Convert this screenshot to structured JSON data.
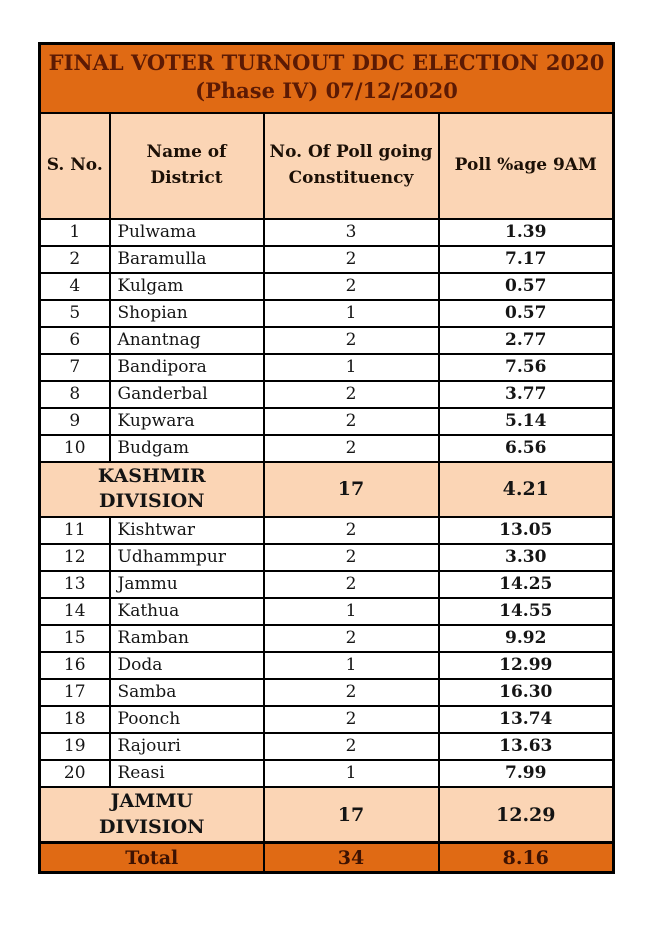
{
  "colors": {
    "orange": "#E06A14",
    "peach": "#FBD5B5",
    "title_text": "#5C1A04",
    "header_text": "#1C1006",
    "data_text": "#151515",
    "division_text": "#141414",
    "total_text": "#3D1202",
    "border": "#000000"
  },
  "table": {
    "title": "FINAL VOTER TURNOUT DDC ELECTION 2020\n(Phase IV) 07/12/2020",
    "columns": [
      {
        "label": "S. No."
      },
      {
        "label": "Name of\nDistrict"
      },
      {
        "label": "No. Of Poll going\nConstituency"
      },
      {
        "label": "Poll %age 9AM"
      }
    ],
    "rows": [
      {
        "type": "data",
        "sno": "1",
        "district": "Pulwama",
        "constituencies": "3",
        "poll": "1.39"
      },
      {
        "type": "data",
        "sno": "2",
        "district": "Baramulla",
        "constituencies": "2",
        "poll": "7.17"
      },
      {
        "type": "data",
        "sno": "4",
        "district": "Kulgam",
        "constituencies": "2",
        "poll": "0.57"
      },
      {
        "type": "data",
        "sno": "5",
        "district": "Shopian",
        "constituencies": "1",
        "poll": "0.57"
      },
      {
        "type": "data",
        "sno": "6",
        "district": "Anantnag",
        "constituencies": "2",
        "poll": "2.77"
      },
      {
        "type": "data",
        "sno": "7",
        "district": "Bandipora",
        "constituencies": "1",
        "poll": "7.56"
      },
      {
        "type": "data",
        "sno": "8",
        "district": "Ganderbal",
        "constituencies": "2",
        "poll": "3.77"
      },
      {
        "type": "data",
        "sno": "9",
        "district": "Kupwara",
        "constituencies": "2",
        "poll": "5.14"
      },
      {
        "type": "data",
        "sno": "10",
        "district": "Budgam",
        "constituencies": "2",
        "poll": "6.56"
      },
      {
        "type": "division",
        "label": "KASHMIR\nDIVISION",
        "constituencies": "17",
        "poll": "4.21"
      },
      {
        "type": "data",
        "sno": "11",
        "district": "Kishtwar",
        "constituencies": "2",
        "poll": "13.05"
      },
      {
        "type": "data",
        "sno": "12",
        "district": "Udhammpur",
        "constituencies": "2",
        "poll": "3.30"
      },
      {
        "type": "data",
        "sno": "13",
        "district": "Jammu",
        "constituencies": "2",
        "poll": "14.25"
      },
      {
        "type": "data",
        "sno": "14",
        "district": "Kathua",
        "constituencies": "1",
        "poll": "14.55"
      },
      {
        "type": "data",
        "sno": "15",
        "district": "Ramban",
        "constituencies": "2",
        "poll": "9.92"
      },
      {
        "type": "data",
        "sno": "16",
        "district": "Doda",
        "constituencies": "1",
        "poll": "12.99"
      },
      {
        "type": "data",
        "sno": "17",
        "district": "Samba",
        "constituencies": "2",
        "poll": "16.30"
      },
      {
        "type": "data",
        "sno": "18",
        "district": "Poonch",
        "constituencies": "2",
        "poll": "13.74"
      },
      {
        "type": "data",
        "sno": "19",
        "district": "Rajouri",
        "constituencies": "2",
        "poll": "13.63"
      },
      {
        "type": "data",
        "sno": "20",
        "district": "Reasi",
        "constituencies": "1",
        "poll": "7.99"
      },
      {
        "type": "division",
        "label": "JAMMU\nDIVISION",
        "constituencies": "17",
        "poll": "12.29"
      },
      {
        "type": "total",
        "label": "Total",
        "constituencies": "34",
        "poll": "8.16"
      }
    ]
  }
}
